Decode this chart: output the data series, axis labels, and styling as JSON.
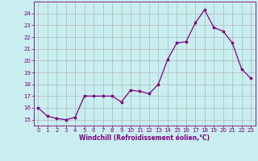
{
  "x": [
    0,
    1,
    2,
    3,
    4,
    5,
    6,
    7,
    8,
    9,
    10,
    11,
    12,
    13,
    14,
    15,
    16,
    17,
    18,
    19,
    20,
    21,
    22,
    23
  ],
  "y": [
    16.0,
    15.3,
    15.1,
    15.0,
    15.2,
    17.0,
    17.0,
    17.0,
    17.0,
    16.5,
    17.5,
    17.4,
    17.2,
    18.0,
    20.1,
    21.5,
    21.6,
    23.2,
    24.3,
    22.8,
    22.5,
    21.5,
    19.3,
    18.5
  ],
  "line_color": "#800080",
  "marker": "o",
  "marker_size": 2.2,
  "bg_color": "#c8eef0",
  "grid_color": "#aaaaaa",
  "xlabel": "Windchill (Refroidissement éolien,°C)",
  "ylabel": "",
  "ylim": [
    14.5,
    25.0
  ],
  "xlim": [
    -0.5,
    23.5
  ],
  "yticks": [
    15,
    16,
    17,
    18,
    19,
    20,
    21,
    22,
    23,
    24
  ],
  "xticks": [
    0,
    1,
    2,
    3,
    4,
    5,
    6,
    7,
    8,
    9,
    10,
    11,
    12,
    13,
    14,
    15,
    16,
    17,
    18,
    19,
    20,
    21,
    22,
    23
  ],
  "xlabel_color": "#800080",
  "tick_color": "#800080",
  "spine_color": "#800080",
  "tick_fontsize": 5.0,
  "xlabel_fontsize": 5.5
}
